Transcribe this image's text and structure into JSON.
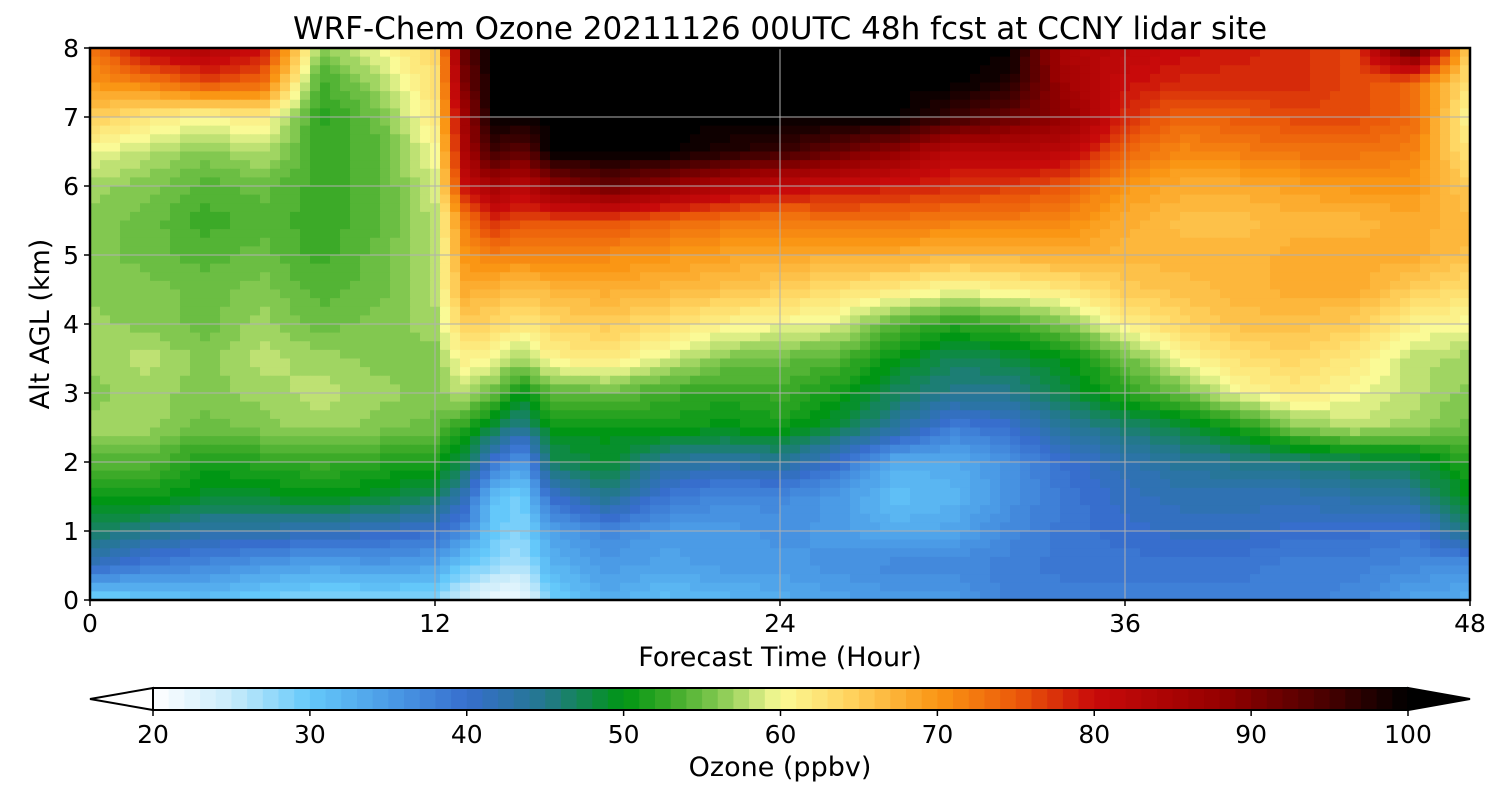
{
  "chart_data": {
    "type": "heatmap",
    "title": "WRF-Chem Ozone  20211126 00UTC 48h fcst at CCNY lidar site",
    "xlabel": "Forecast Time (Hour)",
    "ylabel": "Alt AGL (km)",
    "xlim": [
      0,
      48
    ],
    "ylim": [
      0,
      8
    ],
    "xticks": [
      "0",
      "12",
      "24",
      "36",
      "48"
    ],
    "yticks": [
      "0",
      "1",
      "2",
      "3",
      "4",
      "5",
      "6",
      "7",
      "8"
    ],
    "grid": true,
    "colorbar": {
      "label": "Ozone  (ppbv)",
      "min": 20,
      "max": 100,
      "step": 1,
      "ticks": [
        "20",
        "30",
        "40",
        "50",
        "60",
        "70",
        "80",
        "90",
        "100"
      ],
      "extend": "both"
    },
    "x": [
      0,
      2,
      4,
      6,
      8,
      10,
      12,
      13,
      14,
      15,
      16,
      18,
      20,
      22,
      24,
      26,
      28,
      30,
      32,
      34,
      36,
      38,
      40,
      42,
      44,
      46,
      48
    ],
    "y": [
      0,
      0.5,
      1,
      1.5,
      2,
      2.5,
      3,
      3.5,
      4,
      4.5,
      5,
      5.5,
      6,
      6.5,
      7,
      7.5,
      8
    ],
    "z": [
      [
        28,
        30,
        31,
        29,
        28,
        28,
        28,
        24,
        21,
        21,
        29,
        33,
        31,
        32,
        33,
        34,
        35,
        35,
        38,
        38,
        38,
        38,
        38,
        38,
        37,
        34,
        33
      ],
      [
        41,
        38,
        37,
        35,
        34,
        35,
        34,
        30,
        28,
        26,
        32,
        35,
        34,
        35,
        35,
        36,
        37,
        37,
        38,
        39,
        39,
        39,
        39,
        38,
        38,
        37,
        36
      ],
      [
        47,
        45,
        43,
        43,
        42,
        41,
        40,
        37,
        30,
        28,
        34,
        37,
        35,
        35,
        36,
        35,
        33,
        34,
        37,
        39,
        40,
        41,
        41,
        40,
        40,
        39,
        46
      ],
      [
        51,
        51,
        49,
        49,
        50,
        49,
        47,
        42,
        31,
        29,
        40,
        45,
        39,
        37,
        37,
        35,
        31,
        32,
        36,
        39,
        41,
        42,
        42,
        42,
        43,
        44,
        50
      ],
      [
        54,
        54,
        51,
        52,
        53,
        52,
        51,
        48,
        40,
        34,
        47,
        49,
        44,
        43,
        44,
        40,
        33,
        33,
        36,
        40,
        42,
        44,
        45,
        46,
        47,
        48,
        52
      ],
      [
        57,
        57,
        55,
        56,
        57,
        56,
        55,
        52,
        48,
        44,
        50,
        50,
        51,
        50,
        51,
        48,
        44,
        38,
        40,
        44,
        46,
        48,
        51,
        56,
        58,
        57,
        55
      ],
      [
        56,
        57,
        56,
        57,
        58,
        57,
        56,
        58,
        55,
        50,
        54,
        55,
        53,
        52,
        53,
        51,
        47,
        45,
        45,
        48,
        52,
        55,
        60,
        62,
        60,
        58,
        56
      ],
      [
        57,
        58,
        56,
        58,
        57,
        56,
        56,
        61,
        60,
        57,
        61,
        62,
        59,
        56,
        55,
        54,
        50,
        47,
        48,
        50,
        55,
        60,
        63,
        64,
        62,
        58,
        57
      ],
      [
        57,
        56,
        55,
        57,
        55,
        56,
        57,
        65,
        64,
        62,
        64,
        65,
        63,
        61,
        60,
        59,
        54,
        52,
        53,
        56,
        61,
        64,
        66,
        66,
        65,
        61,
        60
      ],
      [
        56,
        56,
        55,
        56,
        54,
        55,
        58,
        68,
        67,
        66,
        67,
        68,
        67,
        66,
        65,
        63,
        62,
        60,
        61,
        62,
        65,
        66,
        67,
        68,
        68,
        65,
        63
      ],
      [
        56,
        55,
        54,
        55,
        53,
        55,
        58,
        70,
        72,
        71,
        72,
        71,
        70,
        69,
        68,
        68,
        68,
        67,
        67,
        68,
        67,
        67,
        67,
        68,
        68,
        68,
        66
      ],
      [
        56,
        55,
        53,
        54,
        53,
        54,
        58,
        72,
        78,
        76,
        76,
        76,
        74,
        73,
        72,
        73,
        73,
        72,
        72,
        71,
        68,
        66,
        66,
        67,
        67,
        68,
        67
      ],
      [
        57,
        56,
        54,
        55,
        53,
        54,
        59,
        80,
        86,
        82,
        88,
        92,
        88,
        84,
        81,
        80,
        79,
        78,
        77,
        75,
        70,
        68,
        68,
        69,
        70,
        70,
        65
      ],
      [
        60,
        58,
        56,
        58,
        53,
        54,
        60,
        84,
        96,
        92,
        100,
        100,
        100,
        98,
        96,
        92,
        88,
        82,
        83,
        82,
        74,
        71,
        72,
        73,
        73,
        72,
        62
      ],
      [
        65,
        62,
        60,
        62,
        52,
        55,
        62,
        86,
        100,
        100,
        100,
        100,
        100,
        100,
        100,
        100,
        100,
        96,
        92,
        88,
        78,
        74,
        75,
        76,
        76,
        74,
        60
      ],
      [
        70,
        72,
        76,
        74,
        53,
        57,
        63,
        90,
        100,
        100,
        100,
        100,
        100,
        100,
        100,
        100,
        100,
        100,
        98,
        86,
        80,
        78,
        78,
        78,
        76,
        74,
        62
      ],
      [
        72,
        82,
        84,
        80,
        56,
        60,
        64,
        92,
        100,
        100,
        100,
        100,
        100,
        100,
        100,
        100,
        100,
        100,
        100,
        84,
        82,
        80,
        79,
        78,
        76,
        96,
        64
      ]
    ]
  }
}
